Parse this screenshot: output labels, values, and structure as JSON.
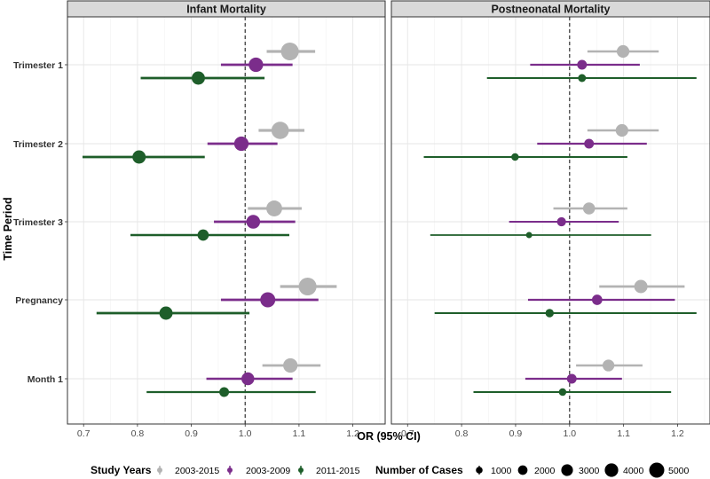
{
  "chart_data": {
    "type": "scatter",
    "subtype": "forest-plot",
    "xlabel": "OR (95% CI)",
    "ylabel": "Time Period",
    "xlim": [
      0.67,
      1.26
    ],
    "xticks": [
      0.7,
      0.8,
      0.9,
      1.0,
      1.1,
      1.2
    ],
    "xtick_labels": [
      "0.7",
      "0.8",
      "0.9",
      "1.0",
      "1.1",
      "1.2"
    ],
    "reference_line": 1.0,
    "categories": [
      "Trimester 1",
      "Trimester 2",
      "Trimester 3",
      "Pregnancy",
      "Month 1"
    ],
    "panels": [
      {
        "title": "Infant Mortality",
        "series": [
          {
            "name": "2003-2015",
            "color": "#b3b3b3",
            "or": [
              1.083,
              1.065,
              1.054,
              1.116,
              1.084
            ],
            "lo": [
              1.04,
              1.025,
              1.005,
              1.065,
              1.032
            ],
            "hi": [
              1.13,
              1.11,
              1.105,
              1.17,
              1.14
            ],
            "cases": [
              5000,
              4800,
              4000,
              5000,
              3300
            ]
          },
          {
            "name": "2003-2009",
            "color": "#7b2d8b",
            "or": [
              1.02,
              0.993,
              1.015,
              1.042,
              1.005
            ],
            "lo": [
              0.955,
              0.93,
              0.942,
              0.955,
              0.928
            ],
            "hi": [
              1.088,
              1.06,
              1.093,
              1.136,
              1.088
            ],
            "cases": [
              3300,
              3300,
              3000,
              3600,
              2600
            ]
          },
          {
            "name": "2011-2015",
            "color": "#1e5e2a",
            "or": [
              0.913,
              0.803,
              0.922,
              0.853,
              0.961
            ],
            "lo": [
              0.806,
              0.698,
              0.787,
              0.724,
              0.817
            ],
            "hi": [
              1.036,
              0.925,
              1.082,
              1.008,
              1.131
            ],
            "cases": [
              2800,
              2800,
              2000,
              2800,
              1500
            ]
          }
        ]
      },
      {
        "title": "Postneonatal Mortality",
        "series": [
          {
            "name": "2003-2015",
            "color": "#b3b3b3",
            "or": [
              1.099,
              1.097,
              1.036,
              1.132,
              1.072
            ],
            "lo": [
              1.033,
              1.033,
              0.97,
              1.055,
              1.012
            ],
            "hi": [
              1.165,
              1.165,
              1.107,
              1.213,
              1.135
            ],
            "cases": [
              2500,
              2500,
              2300,
              2800,
              2200
            ]
          },
          {
            "name": "2003-2009",
            "color": "#7b2d8b",
            "or": [
              1.023,
              1.036,
              0.985,
              1.051,
              1.004
            ],
            "lo": [
              0.927,
              0.94,
              0.888,
              0.923,
              0.918
            ],
            "hi": [
              1.13,
              1.143,
              1.091,
              1.195,
              1.097
            ],
            "cases": [
              1500,
              1500,
              1300,
              1700,
              1500
            ]
          },
          {
            "name": "2011-2015",
            "color": "#1e5e2a",
            "or": [
              1.023,
              0.899,
              0.925,
              0.963,
              0.987
            ],
            "lo": [
              0.847,
              0.73,
              0.742,
              0.75,
              0.822
            ],
            "hi": [
              1.235,
              1.107,
              1.151,
              1.235,
              1.188
            ],
            "cases": [
              1000,
              900,
              600,
              1100,
              900
            ]
          }
        ]
      }
    ],
    "legend": {
      "color_title": "Study Years",
      "color_entries": [
        "2003-2015",
        "2003-2009",
        "2011-2015"
      ],
      "size_title": "Number of Cases",
      "size_values": [
        1000,
        2000,
        3000,
        4000,
        5000
      ],
      "size_labels": [
        "1000",
        "2000",
        "3000",
        "4000",
        "5000"
      ],
      "position": "bottom"
    }
  }
}
